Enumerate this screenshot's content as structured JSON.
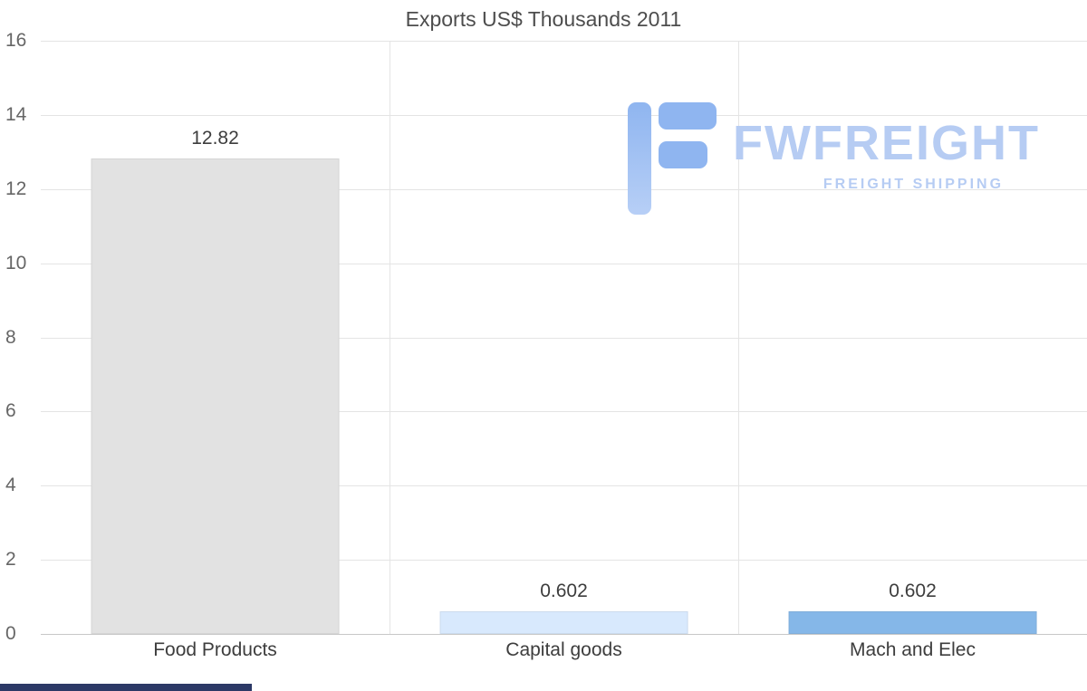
{
  "title": "Exports US$ Thousands 2011",
  "watermark": {
    "brand": "FWFREIGHT",
    "tagline": "FREIGHT SHIPPING",
    "text_color": "#b6ccf3",
    "icon_dark": "#8fb5f0",
    "icon_light": "#b7cff6"
  },
  "bottom_strip_color": "#2c3966",
  "chart_data": {
    "type": "bar",
    "title": "Exports US$ Thousands 2011",
    "categories": [
      "Food Products",
      "Capital goods",
      "Mach and Elec"
    ],
    "values": [
      12.82,
      0.602,
      0.602
    ],
    "value_labels": [
      "12.82",
      "0.602",
      "0.602"
    ],
    "bar_colors": [
      "#e2e2e2",
      "#d8e9fd",
      "#85b7e8"
    ],
    "xlabel": "",
    "ylabel": "",
    "ylim": [
      0,
      16
    ],
    "yticks": [
      0,
      2,
      4,
      6,
      8,
      10,
      12,
      14,
      16
    ],
    "grid": true,
    "legend": false
  }
}
